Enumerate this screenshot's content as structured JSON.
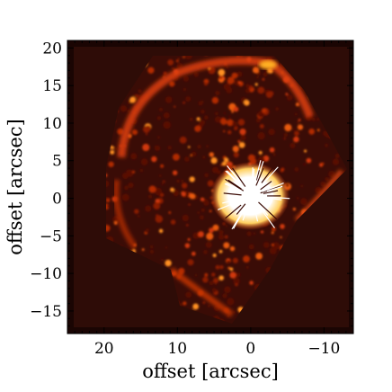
{
  "figure": {
    "xlabel": "offset [arcsec]",
    "ylabel": "offset [arcsec]",
    "x_ticks": [
      "20",
      "10",
      "0",
      "−10"
    ],
    "y_ticks": [
      "20",
      "15",
      "10",
      "5",
      "0",
      "−5",
      "−10",
      "−15"
    ],
    "x_tick_values": [
      20,
      10,
      0,
      -10
    ],
    "y_tick_values": [
      20,
      15,
      10,
      5,
      0,
      -5,
      -10,
      -15
    ],
    "xlim": [
      25,
      -14
    ],
    "ylim": [
      -18,
      21
    ],
    "x_direction": "decreasing to the right",
    "colormap": "black-red-orange-yellow-white (heat)",
    "colors": {
      "background": "#2a0a06",
      "mosaic_edge": "#120303",
      "emission_low": "#8a1a05",
      "emission_mid": "#e0400a",
      "emission_high": "#ffb020",
      "core": "#ffffff"
    }
  }
}
